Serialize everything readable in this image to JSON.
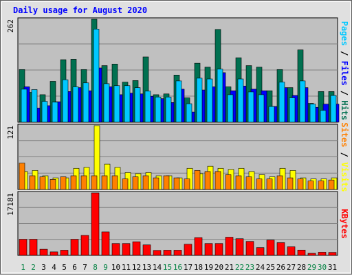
{
  "chart_data": {
    "type": "bar",
    "title": "Daily usage for August 2020",
    "x": [
      "1",
      "2",
      "3",
      "4",
      "5",
      "6",
      "7",
      "8",
      "9",
      "10",
      "11",
      "12",
      "13",
      "14",
      "15",
      "16",
      "17",
      "18",
      "19",
      "20",
      "21",
      "22",
      "23",
      "24",
      "25",
      "26",
      "27",
      "28",
      "29",
      "30",
      "31"
    ],
    "weekend_days": [
      1,
      2,
      8,
      9,
      15,
      16,
      22,
      23,
      29,
      30
    ],
    "panels": [
      {
        "max_label": "262",
        "ylim": [
          0,
          262
        ],
        "series": [
          {
            "name": "Hits",
            "color": "#007050",
            "values": [
              134,
              76,
              70,
              104,
              159,
              160,
              134,
              262,
              144,
              148,
              102,
              106,
              166,
              70,
              72,
              120,
              62,
              150,
              140,
              236,
              90,
              164,
              144,
              140,
              80,
              134,
              88,
              184,
              48,
              78,
              78
            ]
          },
          {
            "name": "Files",
            "color": "#0000ff",
            "values": [
              90,
              36,
              42,
              52,
              78,
              88,
              80,
              138,
              90,
              70,
              74,
              72,
              66,
              60,
              50,
              84,
              26,
              82,
              90,
              126,
              80,
              92,
              84,
              80,
              40,
              88,
              68,
              88,
              38,
              46,
              46
            ]
          },
          {
            "name": "Pages",
            "color": "#00c8ff",
            "values": [
              84,
              83,
              53,
              51,
              108,
              90,
              100,
              237,
              98,
              93,
              93,
              88,
              79,
              64,
              64,
              105,
              47,
              112,
              110,
              135,
              70,
              110,
              77,
              70,
              40,
              102,
              62,
              105,
              46,
              30,
              68
            ]
          }
        ]
      },
      {
        "max_label": "121",
        "ylim": [
          0,
          121
        ],
        "series": [
          {
            "name": "Visits",
            "color": "#ffff00",
            "values": [
              34,
              36,
              26,
              22,
              22,
              40,
              42,
              121,
              48,
              42,
              32,
              30,
              32,
              26,
              26,
              22,
              40,
              30,
              44,
              40,
              38,
              40,
              34,
              28,
              24,
              40,
              36,
              22,
              20,
              20,
              22
            ]
          },
          {
            "name": "Sites",
            "color": "#ff8000",
            "values": [
              50,
              26,
              24,
              19,
              24,
              26,
              26,
              26,
              26,
              26,
              20,
              24,
              26,
              22,
              26,
              22,
              20,
              36,
              34,
              34,
              28,
              26,
              24,
              20,
              20,
              26,
              22,
              20,
              16,
              16,
              18
            ]
          }
        ]
      },
      {
        "max_label": "17181",
        "ylim": [
          0,
          17181
        ],
        "series": [
          {
            "name": "KBytes",
            "color": "#ff0000",
            "values": [
              4420,
              4420,
              1680,
              960,
              1420,
              4420,
              5500,
              17181,
              6440,
              3260,
              3260,
              3740,
              2880,
              1360,
              1420,
              1420,
              3060,
              4880,
              3260,
              3260,
              5000,
              4580,
              3830,
              2140,
              4200,
              3500,
              2360,
              1460,
              560,
              860,
              820
            ]
          }
        ]
      }
    ],
    "right_labels": [
      [
        {
          "text": "Pages",
          "color": "#00c8ff"
        },
        {
          "text": " / ",
          "color": "#000000"
        },
        {
          "text": "Files",
          "color": "#0000ff"
        },
        {
          "text": " / ",
          "color": "#000000"
        },
        {
          "text": "Hits",
          "color": "#007050"
        }
      ],
      [
        {
          "text": "Sites",
          "color": "#ff8000"
        },
        {
          "text": " / ",
          "color": "#000000"
        },
        {
          "text": "Visits",
          "color": "#ffff00"
        }
      ],
      [
        {
          "text": "KBytes",
          "color": "#ff0000"
        }
      ]
    ],
    "colors": {
      "title": "#0000ff",
      "plot_bg": "#c0c0c0",
      "frame_bg": "#e0e0e0",
      "weekday_label": "#000000",
      "weekend_label": "#008040",
      "gridline": "#808080"
    }
  }
}
